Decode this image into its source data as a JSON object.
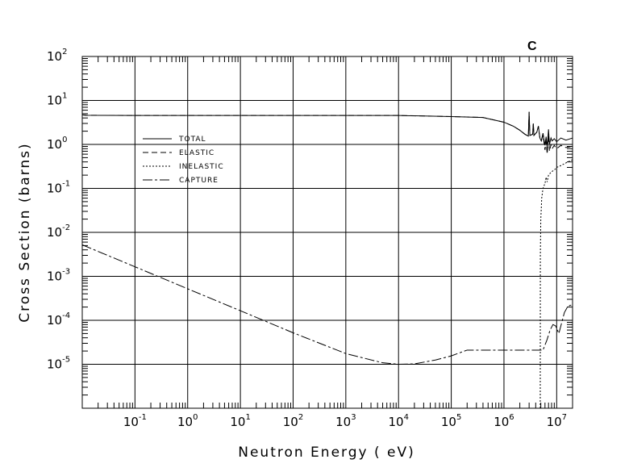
{
  "chart_data": {
    "type": "line",
    "title": "C",
    "xlabel": "Neutron Energy ( eV)",
    "ylabel": "Cross Section (barns)",
    "xscale": "log",
    "yscale": "log",
    "xlim": [
      0.01,
      20000000
    ],
    "ylim": [
      1e-06,
      100
    ],
    "grid": true,
    "legend_position": "upper-left",
    "x_ticks": [
      {
        "base": "10",
        "exp": "-1"
      },
      {
        "base": "10",
        "exp": "0"
      },
      {
        "base": "10",
        "exp": "1"
      },
      {
        "base": "10",
        "exp": "2"
      },
      {
        "base": "10",
        "exp": "3"
      },
      {
        "base": "10",
        "exp": "4"
      },
      {
        "base": "10",
        "exp": "5"
      },
      {
        "base": "10",
        "exp": "6"
      },
      {
        "base": "10",
        "exp": "7"
      }
    ],
    "y_ticks": [
      {
        "base": "10",
        "exp": "2"
      },
      {
        "base": "10",
        "exp": "1"
      },
      {
        "base": "10",
        "exp": "0"
      },
      {
        "base": "10",
        "exp": "-1"
      },
      {
        "base": "10",
        "exp": "-2"
      },
      {
        "base": "10",
        "exp": "-3"
      },
      {
        "base": "10",
        "exp": "-4"
      },
      {
        "base": "10",
        "exp": "-5"
      }
    ],
    "series": [
      {
        "name": "TOTAL",
        "style": "solid",
        "points": [
          [
            0.01,
            4.7
          ],
          [
            0.012,
            4.6
          ],
          [
            0.1,
            4.55
          ],
          [
            1,
            4.55
          ],
          [
            100,
            4.55
          ],
          [
            10000,
            4.55
          ],
          [
            100000,
            4.3
          ],
          [
            400000,
            4.1
          ],
          [
            1000000,
            3.2
          ],
          [
            1500000,
            2.6
          ],
          [
            2000000,
            2.1
          ],
          [
            2500000,
            1.7
          ],
          [
            2900000,
            1.55
          ],
          [
            3000000,
            5.5
          ],
          [
            3100000,
            1.6
          ],
          [
            3500000,
            1.7
          ],
          [
            3600000,
            3.0
          ],
          [
            3700000,
            1.6
          ],
          [
            4200000,
            1.9
          ],
          [
            4500000,
            2.6
          ],
          [
            4800000,
            1.4
          ],
          [
            5100000,
            1.2
          ],
          [
            5500000,
            1.8
          ],
          [
            6000000,
            0.95
          ],
          [
            6300000,
            1.5
          ],
          [
            6600000,
            0.85
          ],
          [
            7000000,
            2.2
          ],
          [
            7300000,
            1.0
          ],
          [
            7800000,
            1.4
          ],
          [
            8200000,
            1.2
          ],
          [
            9000000,
            1.35
          ],
          [
            10000000,
            1.15
          ],
          [
            12000000,
            1.4
          ],
          [
            15000000,
            1.25
          ],
          [
            20000000,
            1.4
          ]
        ]
      },
      {
        "name": "ELASTIC",
        "style": "dashed",
        "points": [
          [
            0.01,
            4.7
          ],
          [
            0.012,
            4.6
          ],
          [
            0.1,
            4.55
          ],
          [
            1,
            4.55
          ],
          [
            100,
            4.55
          ],
          [
            10000,
            4.55
          ],
          [
            100000,
            4.3
          ],
          [
            400000,
            4.1
          ],
          [
            1000000,
            3.2
          ],
          [
            1500000,
            2.6
          ],
          [
            2000000,
            2.1
          ],
          [
            2500000,
            1.7
          ],
          [
            2900000,
            1.55
          ],
          [
            3000000,
            5.5
          ],
          [
            3100000,
            1.6
          ],
          [
            3500000,
            1.7
          ],
          [
            3600000,
            3.0
          ],
          [
            3700000,
            1.6
          ],
          [
            4200000,
            1.9
          ],
          [
            4500000,
            2.6
          ],
          [
            4800000,
            1.4
          ],
          [
            5100000,
            1.2
          ],
          [
            5500000,
            1.6
          ],
          [
            6000000,
            0.75
          ],
          [
            6300000,
            1.2
          ],
          [
            6600000,
            0.6
          ],
          [
            7000000,
            1.6
          ],
          [
            7300000,
            0.7
          ],
          [
            7800000,
            1.0
          ],
          [
            8200000,
            0.8
          ],
          [
            9000000,
            0.95
          ],
          [
            10000000,
            0.8
          ],
          [
            12000000,
            0.95
          ],
          [
            15000000,
            0.85
          ],
          [
            20000000,
            0.9
          ]
        ]
      },
      {
        "name": "INELASTIC",
        "style": "dotted",
        "points": [
          [
            4880000,
            1e-06
          ],
          [
            4900000,
            0.003
          ],
          [
            5000000,
            0.02
          ],
          [
            5200000,
            0.06
          ],
          [
            5500000,
            0.1
          ],
          [
            6000000,
            0.13
          ],
          [
            6300000,
            0.18
          ],
          [
            6600000,
            0.14
          ],
          [
            7000000,
            0.2
          ],
          [
            8000000,
            0.24
          ],
          [
            9000000,
            0.26
          ],
          [
            10000000,
            0.3
          ],
          [
            12000000,
            0.33
          ],
          [
            15000000,
            0.38
          ],
          [
            20000000,
            0.45
          ]
        ]
      },
      {
        "name": "CAPTURE",
        "style": "dashdot",
        "points": [
          [
            0.01,
            0.0052
          ],
          [
            0.1,
            0.00165
          ],
          [
            1,
            0.00052
          ],
          [
            10,
            0.000165
          ],
          [
            100,
            5.2e-05
          ],
          [
            1000,
            1.75e-05
          ],
          [
            5000,
            1.08e-05
          ],
          [
            10000,
            1e-05
          ],
          [
            20000,
            1.02e-05
          ],
          [
            50000,
            1.25e-05
          ],
          [
            100000,
            1.55e-05
          ],
          [
            200000,
            2.1e-05
          ],
          [
            300000,
            2.1e-05
          ],
          [
            1000000,
            2.1e-05
          ],
          [
            3000000,
            2.1e-05
          ],
          [
            5500000,
            2.1e-05
          ],
          [
            6500000,
            3.5e-05
          ],
          [
            7500000,
            6e-05
          ],
          [
            8500000,
            8e-05
          ],
          [
            9500000,
            7.5e-05
          ],
          [
            11000000,
            5e-05
          ],
          [
            12500000,
            9e-05
          ],
          [
            14000000,
            0.00015
          ],
          [
            16000000,
            0.0002
          ],
          [
            18000000,
            0.00022
          ],
          [
            20000000,
            0.00022
          ]
        ]
      }
    ]
  }
}
